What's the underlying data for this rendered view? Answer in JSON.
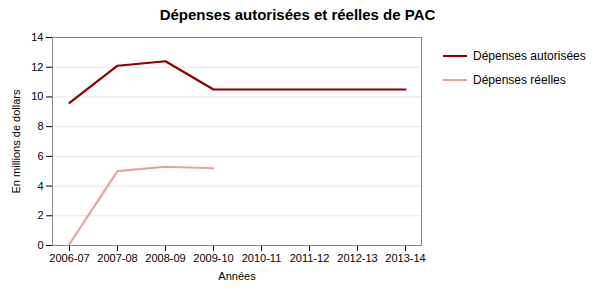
{
  "chart_data": {
    "type": "line",
    "title": "Dépenses autorisées et réelles de PAC",
    "xlabel": "Années",
    "ylabel": "En millions de dollars",
    "categories": [
      "2006-07",
      "2007-08",
      "2008-09",
      "2009-10",
      "2010-11",
      "2011-12",
      "2012-13",
      "2013-14"
    ],
    "series": [
      {
        "name": "Dépenses autorisées",
        "color": "#8B0000",
        "values": [
          9.6,
          12.1,
          12.4,
          10.5,
          10.5,
          10.5,
          10.5,
          10.5
        ]
      },
      {
        "name": "Dépenses réelles",
        "color": "#E8A0A0",
        "values": [
          0.1,
          5.0,
          5.3,
          5.2,
          null,
          null,
          null,
          null
        ]
      }
    ],
    "ylim": [
      0,
      14
    ],
    "yticks": [
      0,
      2,
      4,
      6,
      8,
      10,
      12,
      14
    ],
    "grid": true,
    "legend": "right"
  }
}
